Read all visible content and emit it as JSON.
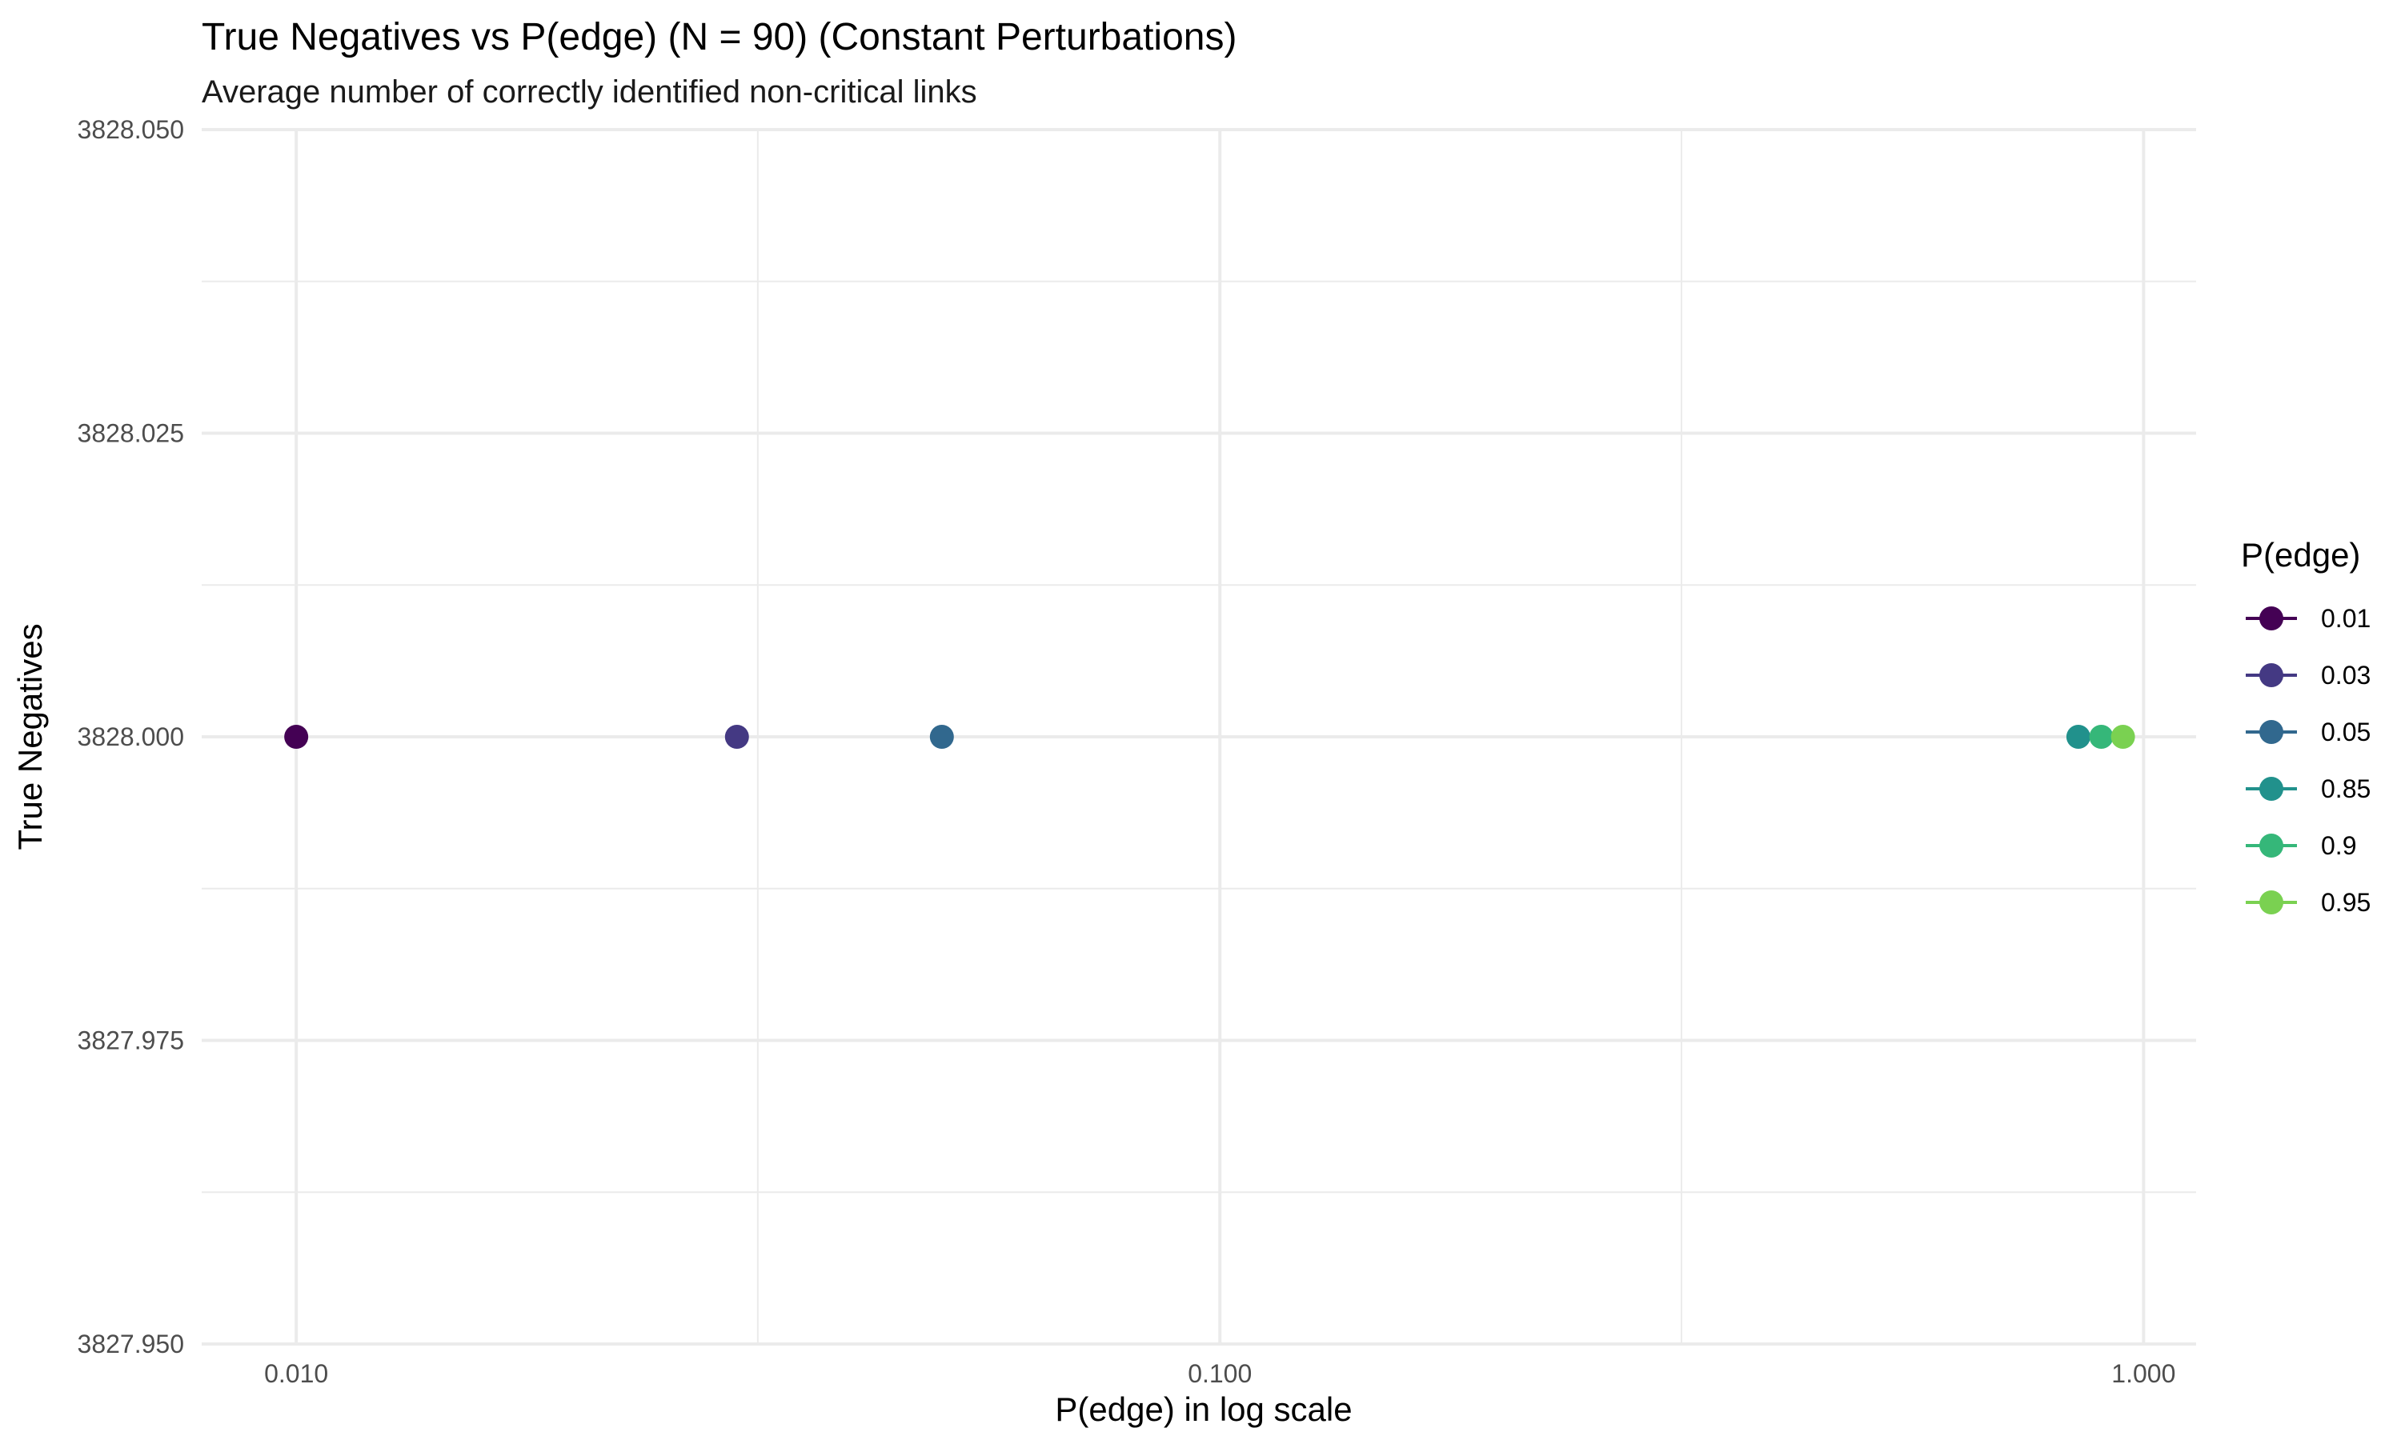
{
  "chart_data": {
    "type": "scatter",
    "title": "True Negatives vs P(edge) (N = 90) (Constant Perturbations)",
    "subtitle": "Average number of correctly identified non-critical links",
    "xlabel": "P(edge) in log scale",
    "ylabel": "True Negatives",
    "x_scale": "log10",
    "xlim": [
      0.0079,
      1.14
    ],
    "ylim": [
      3827.95,
      3828.05
    ],
    "x_ticks": [
      {
        "value": 0.01,
        "label": "0.010"
      },
      {
        "value": 0.1,
        "label": "0.100"
      },
      {
        "value": 1.0,
        "label": "1.000"
      }
    ],
    "x_minor_ticks": [
      0.0316,
      0.316
    ],
    "y_ticks": [
      {
        "value": 3827.95,
        "label": "3827.950"
      },
      {
        "value": 3827.975,
        "label": "3827.975"
      },
      {
        "value": 3828.0,
        "label": "3828.000"
      },
      {
        "value": 3828.025,
        "label": "3828.025"
      },
      {
        "value": 3828.05,
        "label": "3828.050"
      }
    ],
    "y_minor_ticks": [
      3827.9625,
      3827.9875,
      3828.0125,
      3828.0375
    ],
    "grid": true,
    "legend": {
      "title": "P(edge)",
      "position": "right"
    },
    "series": [
      {
        "name": "0.01",
        "color": "#440154",
        "x": [
          0.01
        ],
        "y": [
          3828.0
        ]
      },
      {
        "name": "0.03",
        "color": "#443983",
        "x": [
          0.03
        ],
        "y": [
          3828.0
        ]
      },
      {
        "name": "0.05",
        "color": "#31688e",
        "x": [
          0.05
        ],
        "y": [
          3828.0
        ]
      },
      {
        "name": "0.85",
        "color": "#21918c",
        "x": [
          0.85
        ],
        "y": [
          3828.0
        ]
      },
      {
        "name": "0.9",
        "color": "#35b779",
        "x": [
          0.9
        ],
        "y": [
          3828.0
        ]
      },
      {
        "name": "0.95",
        "color": "#7ad151",
        "x": [
          0.95
        ],
        "y": [
          3828.0
        ]
      }
    ]
  }
}
